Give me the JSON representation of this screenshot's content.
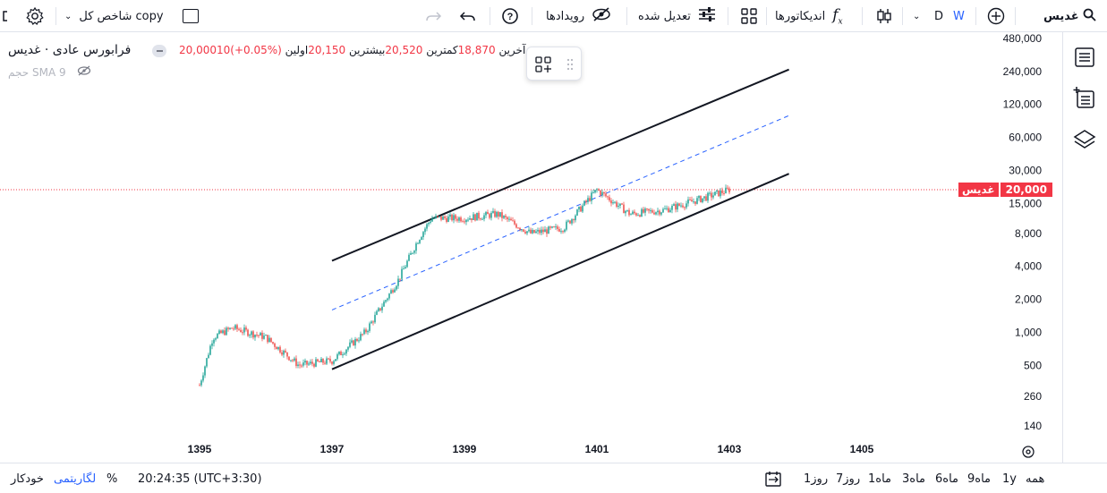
{
  "topbar": {
    "symbol": "غدیس",
    "interval_w": "W",
    "interval_d": "D",
    "indicators_label": "اندیکاتورها",
    "adjust_label": "تعدیل شده",
    "events_label": "رویدادها",
    "compare_label": "شاخص کل copy"
  },
  "legend": {
    "title": "فرابورس عادی · غدیس",
    "first_label": "اولین",
    "first_value": "20,150",
    "high_label": "بیشترین",
    "high_value": "20,520",
    "low_label": "کمترین",
    "low_value": "18,870",
    "last_label": "آخرین",
    "last_value": "20,00010",
    "change": "(+0.05%)",
    "volume_label": "حجم SMA 9"
  },
  "price_tag": {
    "name": "غدیس",
    "value": "20,000"
  },
  "bottombar": {
    "ranges": [
      "همه",
      "1y",
      "9ماه",
      "6ماه",
      "3ماه",
      "1ماه",
      "7روز",
      "1روز"
    ],
    "time": "20:24:35 (UTC+3:30)",
    "percent": "%",
    "log": "لگاریتمی",
    "auto": "خودکار"
  },
  "colors": {
    "up": "#26a69a",
    "down": "#ef5350",
    "accent": "#2962ff",
    "price_line": "#f23645"
  },
  "chart_data": {
    "type": "candlestick",
    "scale": "log",
    "x_ticks": [
      "1395",
      "1397",
      "1399",
      "1401",
      "1403",
      "1405"
    ],
    "y_ticks": [
      "480,000",
      "240,000",
      "120,000",
      "60,000",
      "30,000",
      "15,000",
      "8,000",
      "4,000",
      "2,000",
      "1,000",
      "500",
      "260",
      "140"
    ],
    "last_price": 20000,
    "approx_series": [
      {
        "t": "1395.0",
        "v": 330
      },
      {
        "t": "1395.2",
        "v": 900
      },
      {
        "t": "1395.5",
        "v": 1100
      },
      {
        "t": "1396.0",
        "v": 900
      },
      {
        "t": "1396.5",
        "v": 500
      },
      {
        "t": "1397.0",
        "v": 550
      },
      {
        "t": "1397.5",
        "v": 1000
      },
      {
        "t": "1398.0",
        "v": 3000
      },
      {
        "t": "1398.3",
        "v": 7000
      },
      {
        "t": "1398.5",
        "v": 11000
      },
      {
        "t": "1399.0",
        "v": 11000
      },
      {
        "t": "1399.5",
        "v": 12000
      },
      {
        "t": "1400.0",
        "v": 8000
      },
      {
        "t": "1400.5",
        "v": 9000
      },
      {
        "t": "1401.0",
        "v": 20000
      },
      {
        "t": "1401.5",
        "v": 12000
      },
      {
        "t": "1402.0",
        "v": 13000
      },
      {
        "t": "1402.5",
        "v": 16000
      },
      {
        "t": "1403.0",
        "v": 20000
      }
    ],
    "channel": {
      "upper": [
        {
          "t": "1397.0",
          "v": 4500
        },
        {
          "t": "1403.9",
          "v": 250000
        }
      ],
      "middle": [
        {
          "t": "1397.0",
          "v": 1600
        },
        {
          "t": "1403.9",
          "v": 95000
        }
      ],
      "lower": [
        {
          "t": "1397.0",
          "v": 460
        },
        {
          "t": "1403.9",
          "v": 28000
        }
      ]
    }
  }
}
